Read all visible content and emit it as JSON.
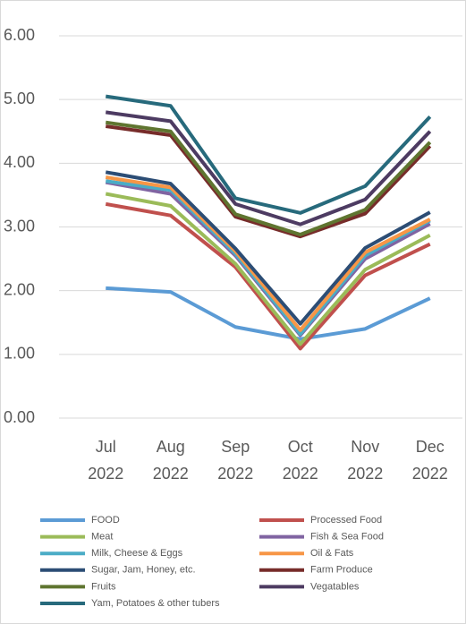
{
  "chart_data": {
    "type": "line",
    "categories": [
      "Jul 2022",
      "Aug 2022",
      "Sep 2022",
      "Oct 2022",
      "Nov 2022",
      "Dec 2022"
    ],
    "ylim": [
      0,
      6
    ],
    "yticks": [
      {
        "value": 0,
        "label": "0.00"
      },
      {
        "value": 1,
        "label": "1.00"
      },
      {
        "value": 2,
        "label": "2.00"
      },
      {
        "value": 3,
        "label": "3.00"
      },
      {
        "value": 4,
        "label": "4.00"
      },
      {
        "value": 5,
        "label": "5.00"
      },
      {
        "value": 6,
        "label": "6.00"
      }
    ],
    "grid": true,
    "legend": "bottom",
    "series": [
      {
        "name": "FOOD",
        "color": "#5b9bd5",
        "values": [
          2.04,
          1.98,
          1.43,
          1.24,
          1.4,
          1.88
        ]
      },
      {
        "name": "Processed Food",
        "color": "#c0504d",
        "values": [
          3.36,
          3.18,
          2.37,
          1.09,
          2.24,
          2.73
        ]
      },
      {
        "name": "Meat",
        "color": "#9bbb59",
        "values": [
          3.52,
          3.33,
          2.42,
          1.16,
          2.33,
          2.87
        ]
      },
      {
        "name": "Fish & Sea Food",
        "color": "#8064a2",
        "values": [
          3.7,
          3.52,
          2.55,
          1.3,
          2.5,
          3.05
        ]
      },
      {
        "name": "Milk, Cheese & Eggs",
        "color": "#4bacc6",
        "values": [
          3.72,
          3.58,
          2.58,
          1.32,
          2.55,
          3.1
        ]
      },
      {
        "name": "Oil & Fats",
        "color": "#f79646",
        "values": [
          3.78,
          3.62,
          2.62,
          1.38,
          2.6,
          3.12
        ]
      },
      {
        "name": "Sugar, Jam, Honey, etc.",
        "color": "#2c4d75",
        "values": [
          3.86,
          3.68,
          2.66,
          1.48,
          2.67,
          3.23
        ]
      },
      {
        "name": "Farm Produce",
        "color": "#772c2a",
        "values": [
          4.58,
          4.44,
          3.16,
          2.85,
          3.21,
          4.27
        ]
      },
      {
        "name": "Fruits",
        "color": "#5f7530",
        "values": [
          4.64,
          4.5,
          3.2,
          2.88,
          3.27,
          4.33
        ]
      },
      {
        "name": "Vegatables",
        "color": "#4d3b62",
        "values": [
          4.8,
          4.66,
          3.36,
          3.04,
          3.43,
          4.5
        ]
      },
      {
        "name": "Yam, Potatoes & other tubers",
        "color": "#276a7c",
        "values": [
          5.05,
          4.9,
          3.45,
          3.22,
          3.64,
          4.73
        ]
      }
    ]
  }
}
